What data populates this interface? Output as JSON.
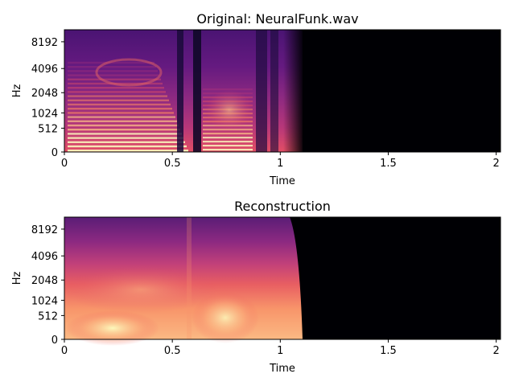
{
  "chart_data": [
    {
      "type": "heatmap",
      "title": "Original: NeuralFunk.wav",
      "xlabel": "Time",
      "ylabel": "Hz",
      "xlim": [
        0,
        2.02
      ],
      "yscale": "mel",
      "x_ticks": [
        0,
        0.5,
        1,
        1.5,
        2
      ],
      "x_tick_labels": [
        "0",
        "0.5",
        "1",
        "1.5",
        "2"
      ],
      "y_ticks": [
        0,
        512,
        1024,
        2048,
        4096,
        8192
      ],
      "y_tick_labels": [
        "0",
        "512",
        "1024",
        "2048",
        "4096",
        "8192"
      ],
      "colormap": "magma",
      "audio_end_time": 1.1,
      "character": "detailed harmonic spectrogram with onsets near 0.15, 0.6, 0.95 and 1.07 s"
    },
    {
      "type": "heatmap",
      "title": "Reconstruction",
      "xlabel": "Time",
      "ylabel": "Hz",
      "xlim": [
        0,
        2.02
      ],
      "yscale": "mel",
      "x_ticks": [
        0,
        0.5,
        1,
        1.5,
        2
      ],
      "x_tick_labels": [
        "0",
        "0.5",
        "1",
        "1.5",
        "2"
      ],
      "y_ticks": [
        0,
        512,
        1024,
        2048,
        4096,
        8192
      ],
      "y_tick_labels": [
        "0",
        "512",
        "1024",
        "2048",
        "4096",
        "8192"
      ],
      "colormap": "magma",
      "audio_end_time": 1.1,
      "character": "smoothed spectrogram with broad energy blobs and no harmonics"
    }
  ]
}
